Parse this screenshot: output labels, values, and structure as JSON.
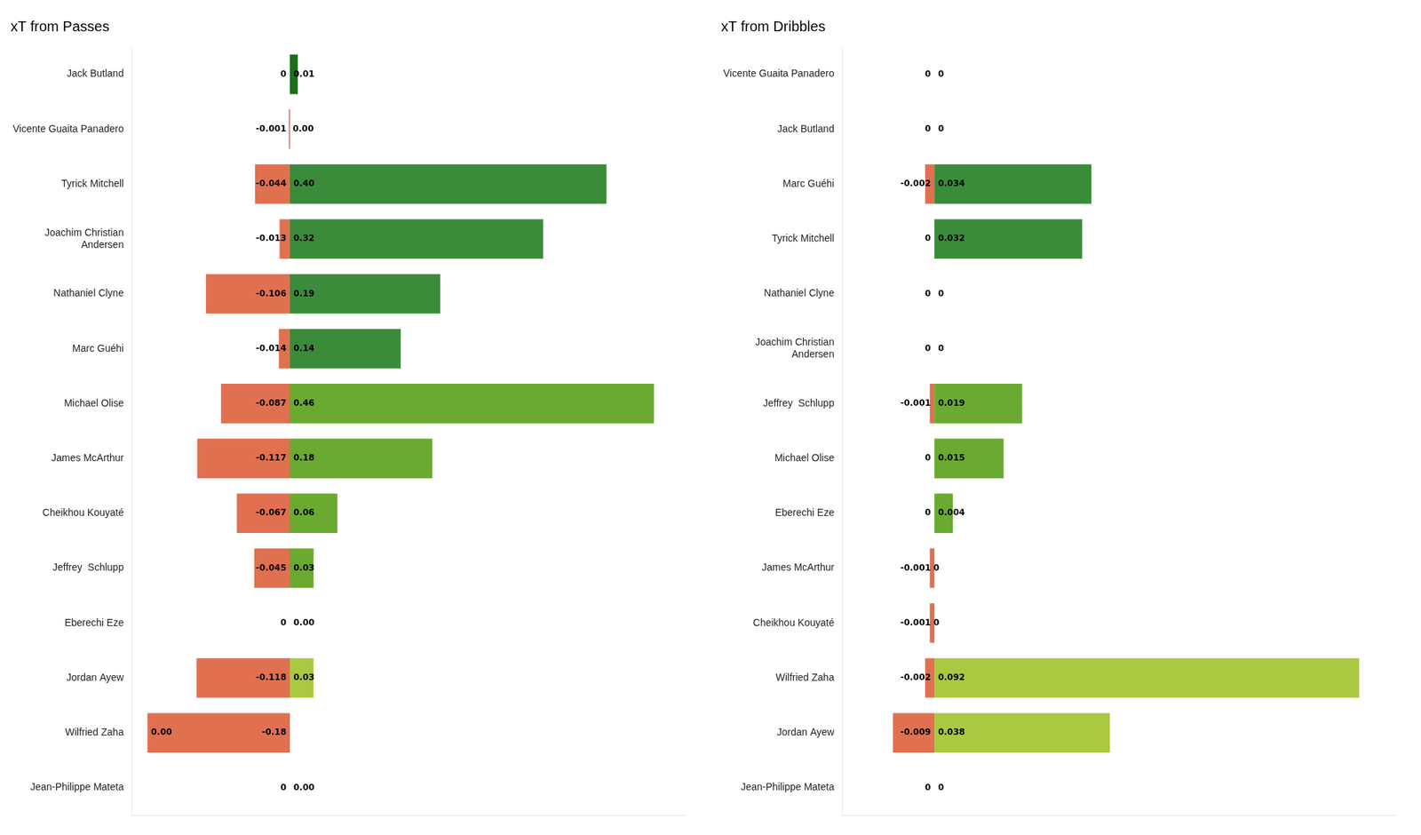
{
  "chart_data": [
    {
      "type": "bar",
      "title": "xT from Passes",
      "orientation": "horizontal",
      "stacked": true,
      "grid": false,
      "tick_labels": "y",
      "data_labels": true,
      "categories": [
        "Jack Butland",
        "Vicente Guaita Panadero",
        "Tyrick Mitchell",
        "Joachim Christian\nAndersen",
        "Nathaniel Clyne",
        "Marc Guéhi",
        "Michael Olise",
        "James McArthur",
        "Cheikhou Kouyaté",
        "Jeffrey  Schlupp",
        "Eberechi Eze",
        "Jordan Ayew",
        "Wilfried Zaha",
        "Jean-Philippe Mateta"
      ],
      "xlim": [
        -0.2,
        0.5
      ],
      "series": [
        {
          "values": [
            0,
            -0.001,
            -0.044,
            -0.013,
            -0.106,
            -0.014,
            -0.087,
            -0.117,
            -0.067,
            -0.045,
            0,
            -0.118,
            -0.18,
            0
          ],
          "value_labels": [
            "0",
            "-0.001",
            "-0.044",
            "-0.013",
            "-0.106",
            "-0.014",
            "-0.087",
            "-0.117",
            "-0.067",
            "-0.045",
            "0",
            "-0.118",
            "-0.18",
            "0"
          ],
          "colors": [
            "#d04030",
            "#d04030",
            "#e07050",
            "#e07050",
            "#e07050",
            "#e07050",
            "#e07050",
            "#e07050",
            "#e07050",
            "#e07050",
            "#e07050",
            "#e07050",
            "#e07050",
            "#e07050"
          ]
        },
        {
          "values": [
            0.01,
            0.0,
            0.4,
            0.32,
            0.19,
            0.14,
            0.46,
            0.18,
            0.06,
            0.03,
            0.0,
            0.03,
            0.0,
            0.0
          ],
          "value_labels": [
            "0.01",
            "0.00",
            "0.40",
            "0.32",
            "0.19",
            "0.14",
            "0.46",
            "0.18",
            "0.06",
            "0.03",
            "0.00",
            "0.03",
            "0.00",
            "0.00"
          ],
          "colors": [
            "#1e6e1e",
            "#1e6e1e",
            "#3a8c3a",
            "#3a8c3a",
            "#3a8c3a",
            "#3a8c3a",
            "#6aaa30",
            "#6aaa30",
            "#6aaa30",
            "#6aaa30",
            "#6aaa30",
            "#aac840",
            "#aac840",
            "#aac840"
          ]
        }
      ]
    },
    {
      "type": "bar",
      "title": "xT from Dribbles",
      "orientation": "horizontal",
      "stacked": true,
      "grid": false,
      "tick_labels": "y",
      "data_labels": true,
      "categories": [
        "Vicente Guaita Panadero",
        "Jack Butland",
        "Marc Guéhi",
        "Tyrick Mitchell",
        "Nathaniel Clyne",
        "Joachim Christian\nAndersen",
        "Jeffrey  Schlupp",
        "Michael Olise",
        "Eberechi Eze",
        "James McArthur",
        "Cheikhou Kouyaté",
        "Wilfried Zaha",
        "Jordan Ayew",
        "Jean-Philippe Mateta"
      ],
      "xlim": [
        -0.02,
        0.1
      ],
      "series": [
        {
          "values": [
            0,
            0,
            -0.002,
            0,
            0,
            0,
            -0.001,
            0,
            0,
            -0.001,
            -0.001,
            -0.002,
            -0.009,
            0
          ],
          "value_labels": [
            "0",
            "0",
            "-0.002",
            "0",
            "0",
            "0",
            "-0.001",
            "0",
            "0",
            "-0.001",
            "-0.001",
            "-0.002",
            "-0.009",
            "0"
          ],
          "colors": [
            "#d04030",
            "#d04030",
            "#e07050",
            "#e07050",
            "#e07050",
            "#e07050",
            "#e07050",
            "#e07050",
            "#e07050",
            "#e07050",
            "#e07050",
            "#e07050",
            "#e07050",
            "#e07050"
          ]
        },
        {
          "values": [
            0.0,
            0.0,
            0.034,
            0.032,
            0.0,
            0.0,
            0.019,
            0.015,
            0.004,
            0.0,
            0.0,
            0.092,
            0.038,
            0.0
          ],
          "value_labels": [
            "0",
            "0",
            "0.034",
            "0.032",
            "0",
            "0",
            "0.019",
            "0.015",
            "0.004",
            "0",
            "0",
            "0.092",
            "0.038",
            "0"
          ],
          "colors": [
            "#1e6e1e",
            "#1e6e1e",
            "#3a8c3a",
            "#3a8c3a",
            "#3a8c3a",
            "#3a8c3a",
            "#6aaa30",
            "#6aaa30",
            "#6aaa30",
            "#6aaa30",
            "#6aaa30",
            "#aac840",
            "#aac840",
            "#aac840"
          ]
        }
      ]
    }
  ]
}
